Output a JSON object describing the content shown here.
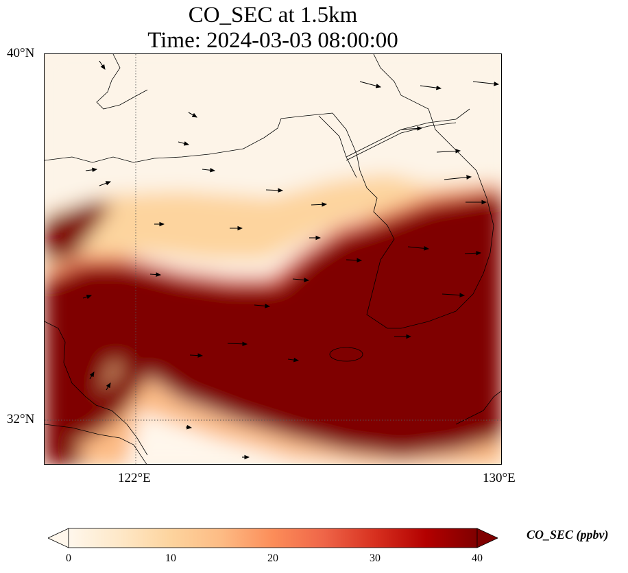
{
  "title": {
    "line1": "CO_SEC at 1.5km",
    "line2": "Time: 2024-03-03 08:00:00"
  },
  "map": {
    "extent": {
      "lon_min": 120,
      "lon_max": 130,
      "lat_min": 31,
      "lat_max": 40
    },
    "gridlines": {
      "lons": [
        122
      ],
      "lats": [
        32
      ],
      "style": "dotted"
    },
    "axis_labels": {
      "lat_top": "40°N",
      "lat_grid": "32°N",
      "lon_grid": "122°E",
      "lon_right": "130°E"
    },
    "field": "CO_SEC",
    "pattern": "low values (<5 ppbv) over the Bohai/Yellow Sea north of ~36°N; a broad band of high values (>40 ppbv) spanning eastern China, the southern Yellow Sea and southern Korea between ~32°N and ~36°N; moderate values south of 32°N in the southwest corner",
    "wind_vectors": "westerly to west-northwesterly flow across the domain"
  },
  "colorbar": {
    "cmap": "OrRd",
    "colors": [
      "#fff7ec",
      "#fee8c8",
      "#fdd49e",
      "#fdbb84",
      "#fc8d59",
      "#ef6548",
      "#d7301f",
      "#b30000",
      "#7f0000"
    ],
    "min": 0,
    "max": 40,
    "ticks": [
      "0",
      "10",
      "20",
      "30",
      "40"
    ],
    "extend": "both",
    "label": "CO_SEC (ppbv)"
  }
}
